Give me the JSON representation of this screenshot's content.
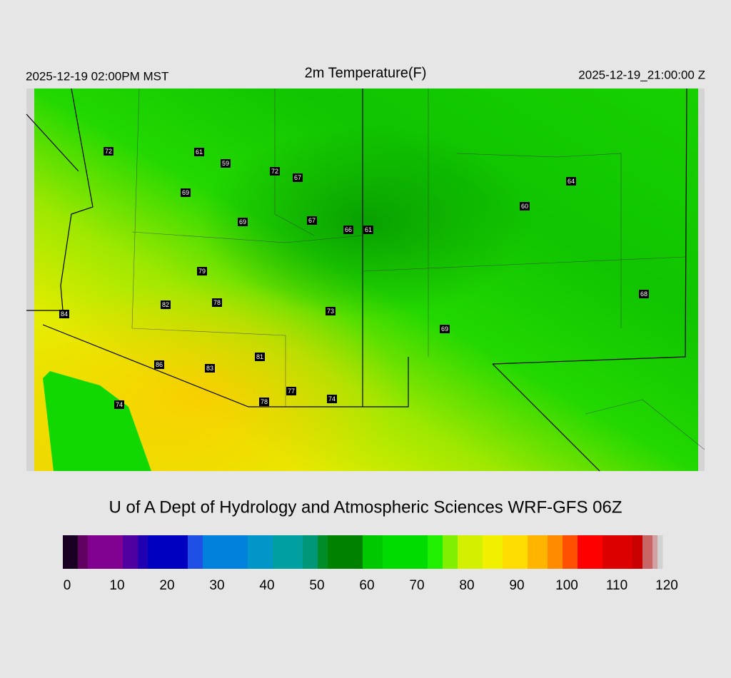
{
  "header": {
    "local_time": "2025-12-19 02:00PM MST",
    "title": "2m Temperature(F)",
    "valid_time": "2025-12-19_21:00:00 Z"
  },
  "stations": [
    72,
    61,
    59,
    72,
    67,
    69,
    64,
    60,
    69,
    67,
    66,
    61,
    79,
    68,
    82,
    78,
    84,
    73,
    69,
    81,
    86,
    83,
    77,
    74,
    78,
    74
  ],
  "credit": "U of A Dept of Hydrology and Atmospheric Sciences WRF-GFS 06Z",
  "colorbar": {
    "range": [
      0,
      120
    ],
    "ticks": [
      0,
      10,
      20,
      30,
      40,
      50,
      60,
      70,
      80,
      90,
      100,
      110,
      120
    ]
  }
}
